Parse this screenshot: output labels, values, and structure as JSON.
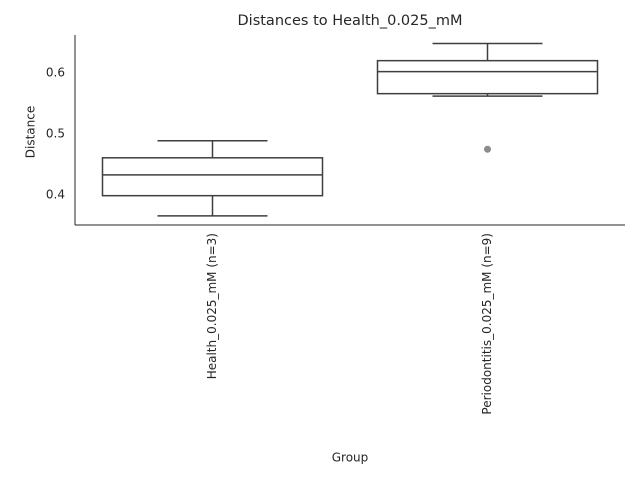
{
  "chart_data": {
    "type": "box",
    "title": "Distances to Health_0.025_mM",
    "x_label": "Group",
    "y_label": "Distance",
    "categories": [
      "Health_0.025_mM (n=3)",
      "Periodontitis_0.025_mM (n=9)"
    ],
    "boxes": [
      {
        "low": 0.366,
        "q1": 0.399,
        "median": 0.433,
        "q3": 0.461,
        "high": 0.489,
        "outliers": []
      },
      {
        "low": 0.562,
        "q1": 0.566,
        "median": 0.602,
        "q3": 0.62,
        "high": 0.648,
        "outliers": [
          0.475
        ]
      }
    ],
    "color": "#3f3f3f",
    "box_fill": "#ffffff",
    "outlier_color": "#8c8c8c",
    "ylim": [
      0.351,
      0.662
    ],
    "yticks": [
      0.4,
      0.5,
      0.6
    ],
    "grid": false
  }
}
